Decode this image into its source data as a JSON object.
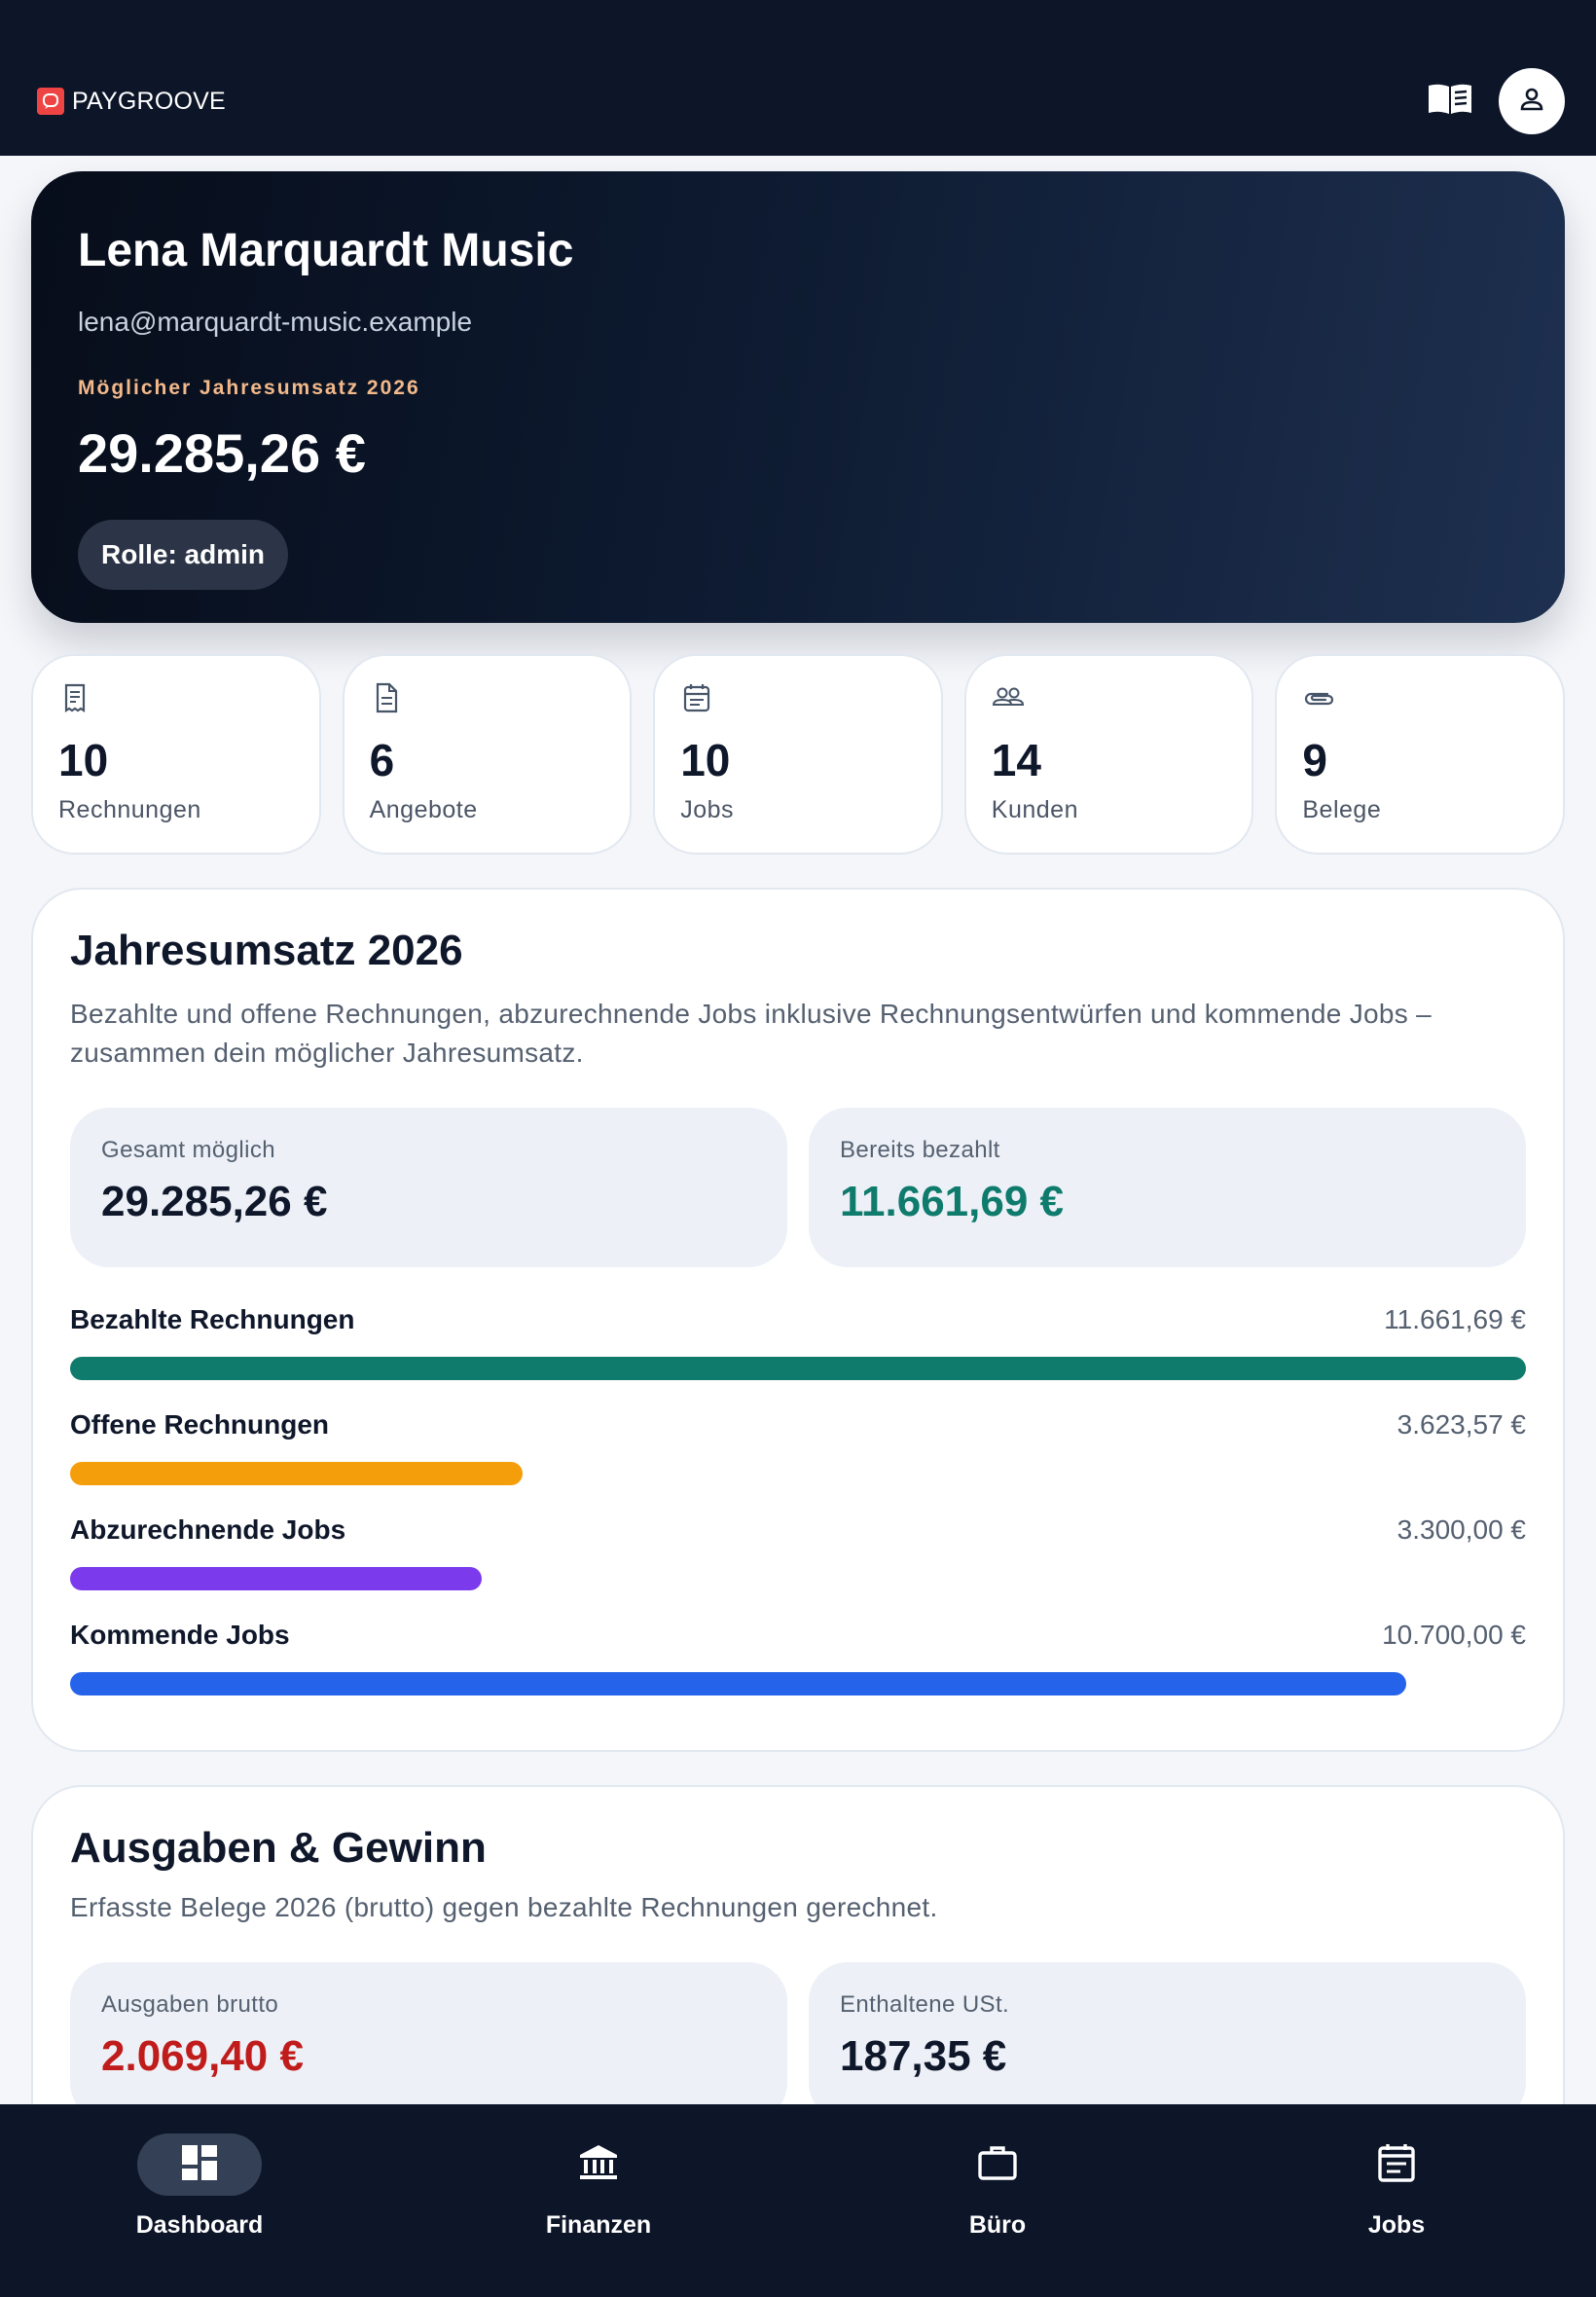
{
  "brand": {
    "name": "PAYGROOVE"
  },
  "header": {
    "guide_icon": "book-icon",
    "account_icon": "user-icon"
  },
  "hero": {
    "name": "Lena Marquardt Music",
    "email": "lena@marquardt-music.example",
    "revenue_label": "Möglicher Jahresumsatz 2026",
    "revenue_amount": "29.285,26 €",
    "role": "Rolle: admin"
  },
  "stats": [
    {
      "value": "10",
      "label": "Rechnungen",
      "icon": "receipt-icon"
    },
    {
      "value": "6",
      "label": "Angebote",
      "icon": "document-icon"
    },
    {
      "value": "10",
      "label": "Jobs",
      "icon": "calendar-icon"
    },
    {
      "value": "14",
      "label": "Kunden",
      "icon": "people-icon"
    },
    {
      "value": "9",
      "label": "Belege",
      "icon": "paperclip-icon"
    }
  ],
  "annual_revenue": {
    "title": "Jahresumsatz 2026",
    "description": "Bezahlte und offene Rechnungen, abzurechnende Jobs inklusive Rechnungsentwürfen und kommende Jobs – zusammen dein möglicher Jahresumsatz.",
    "total_label": "Gesamt möglich",
    "total_value": "29.285,26 €",
    "paid_label": "Bereits bezahlt",
    "paid_value": "11.661,69 €",
    "max_value": 11661.69,
    "bars": [
      {
        "label": "Bezahlte Rechnungen",
        "amount": "11.661,69 €",
        "value": 11661.69,
        "color": "#0f7b6c"
      },
      {
        "label": "Offene Rechnungen",
        "amount": "3.623,57 €",
        "value": 3623.57,
        "color": "#f59e0b"
      },
      {
        "label": "Abzurechnende Jobs",
        "amount": "3.300,00 €",
        "value": 3300.0,
        "color": "#7c3aed"
      },
      {
        "label": "Kommende Jobs",
        "amount": "10.700,00 €",
        "value": 10700.0,
        "color": "#2563eb"
      }
    ]
  },
  "expenses": {
    "title": "Ausgaben & Gewinn",
    "description": "Erfasste Belege 2026 (brutto) gegen bezahlte Rechnungen gerechnet.",
    "gross_label": "Ausgaben brutto",
    "gross_value": "2.069,40 €",
    "vat_label": "Enthaltene USt.",
    "vat_value": "187,35 €"
  },
  "colors": {
    "paid": "#0f7b6c",
    "expense": "#c01c1c",
    "dark": "#0d1528"
  },
  "nav": [
    {
      "label": "Dashboard",
      "icon": "dashboard-icon",
      "active": true
    },
    {
      "label": "Finanzen",
      "icon": "bank-icon",
      "active": false
    },
    {
      "label": "Büro",
      "icon": "briefcase-icon",
      "active": false
    },
    {
      "label": "Jobs",
      "icon": "calendar-list-icon",
      "active": false
    }
  ]
}
